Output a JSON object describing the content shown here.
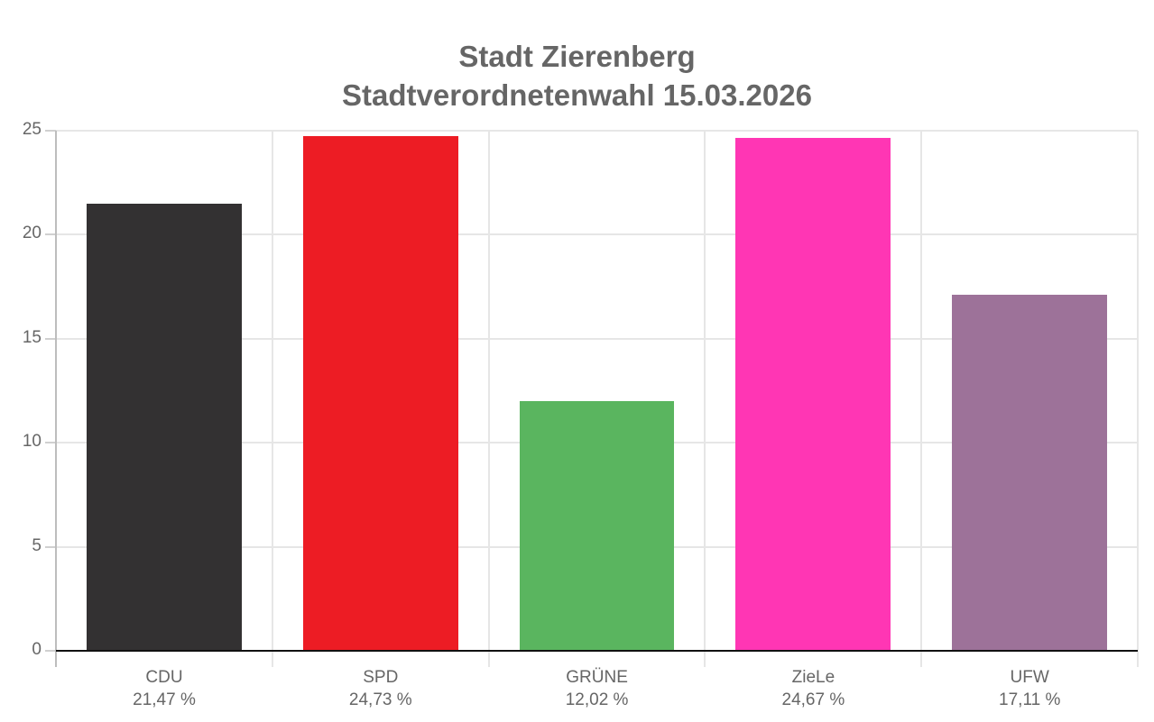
{
  "title": "Stadt Zierenberg",
  "subtitle": "Stadtverordnetenwahl 15.03.2026",
  "chart_data": {
    "type": "bar",
    "title": "Stadt Zierenberg",
    "subtitle": "Stadtverordnetenwahl 15.03.2026",
    "categories": [
      "CDU",
      "SPD",
      "GRÜNE",
      "ZieLe",
      "UFW"
    ],
    "values": [
      21.47,
      24.73,
      12.02,
      24.67,
      17.11
    ],
    "value_labels": [
      "21,47 %",
      "24,73 %",
      "12,02 %",
      "24,67 %",
      "17,11 %"
    ],
    "colors": [
      "#333132",
      "#ed1c24",
      "#5ab55f",
      "#ff36b4",
      "#9d7299"
    ],
    "xlabel": "",
    "ylabel": "",
    "ylim": [
      0,
      25
    ],
    "yticks": [
      0,
      5,
      10,
      15,
      20,
      25
    ],
    "grid": true,
    "legend": "none"
  }
}
